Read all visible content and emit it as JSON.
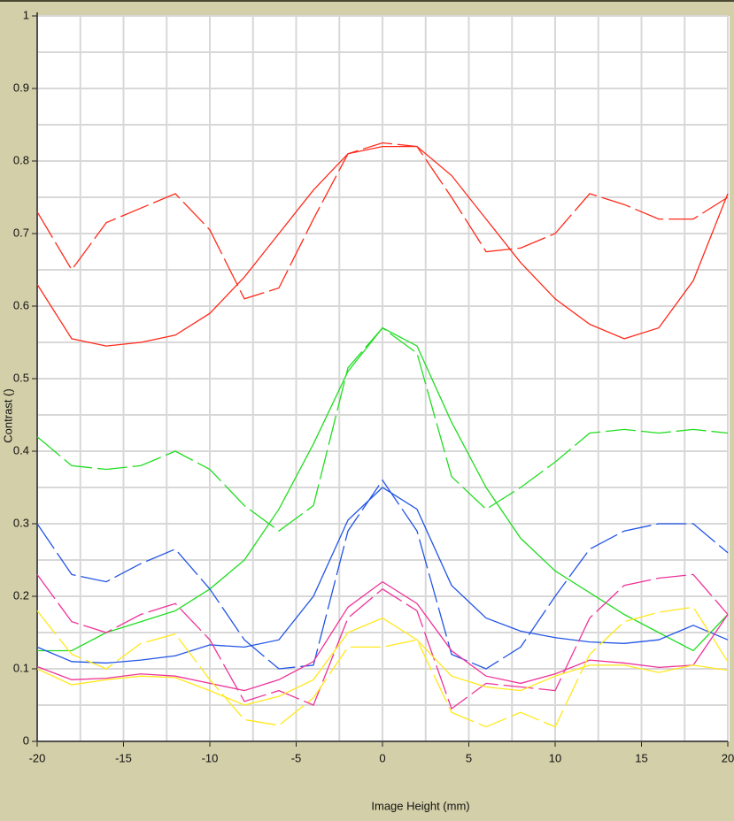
{
  "chart_data": {
    "type": "line",
    "xlabel": "Image Height (mm)",
    "ylabel": "Contrast ()",
    "x": [
      -20,
      -18,
      -16,
      -14,
      -12,
      -10,
      -8,
      -6,
      -4,
      -2,
      0,
      2,
      4,
      6,
      8,
      10,
      12,
      14,
      16,
      18,
      20
    ],
    "series": [
      {
        "color": "#ff2a1a",
        "dash": false,
        "values": [
          0.63,
          0.555,
          0.545,
          0.55,
          0.56,
          0.59,
          0.64,
          0.7,
          0.76,
          0.81,
          0.82,
          0.82,
          0.78,
          0.72,
          0.66,
          0.61,
          0.575,
          0.555,
          0.57,
          0.635,
          0.755
        ]
      },
      {
        "color": "#ff2a1a",
        "dash": true,
        "values": [
          0.73,
          0.65,
          0.715,
          0.735,
          0.755,
          0.705,
          0.61,
          0.625,
          0.72,
          0.81,
          0.825,
          0.82,
          0.75,
          0.675,
          0.68,
          0.7,
          0.755,
          0.74,
          0.72,
          0.72,
          0.75
        ]
      },
      {
        "color": "#22dd22",
        "dash": false,
        "values": [
          0.125,
          0.125,
          0.15,
          0.165,
          0.18,
          0.21,
          0.25,
          0.32,
          0.41,
          0.51,
          0.57,
          0.545,
          0.44,
          0.35,
          0.28,
          0.235,
          0.205,
          0.175,
          0.15,
          0.125,
          0.175
        ]
      },
      {
        "color": "#22dd22",
        "dash": true,
        "values": [
          0.42,
          0.38,
          0.375,
          0.38,
          0.4,
          0.375,
          0.325,
          0.29,
          0.325,
          0.515,
          0.57,
          0.535,
          0.365,
          0.32,
          0.35,
          0.385,
          0.425,
          0.43,
          0.425,
          0.43,
          0.425
        ]
      },
      {
        "color": "#2255e6",
        "dash": false,
        "values": [
          0.13,
          0.11,
          0.108,
          0.112,
          0.118,
          0.133,
          0.13,
          0.14,
          0.2,
          0.305,
          0.35,
          0.32,
          0.215,
          0.17,
          0.152,
          0.143,
          0.137,
          0.135,
          0.14,
          0.16,
          0.14
        ]
      },
      {
        "color": "#2255e6",
        "dash": true,
        "values": [
          0.3,
          0.23,
          0.22,
          0.245,
          0.265,
          0.21,
          0.14,
          0.1,
          0.105,
          0.29,
          0.36,
          0.29,
          0.12,
          0.1,
          0.13,
          0.2,
          0.265,
          0.29,
          0.3,
          0.3,
          0.26
        ]
      },
      {
        "color": "#ee3399",
        "dash": false,
        "values": [
          0.103,
          0.085,
          0.087,
          0.093,
          0.09,
          0.08,
          0.07,
          0.085,
          0.11,
          0.185,
          0.22,
          0.19,
          0.125,
          0.09,
          0.08,
          0.093,
          0.112,
          0.108,
          0.102,
          0.105,
          0.175
        ]
      },
      {
        "color": "#ee3399",
        "dash": true,
        "values": [
          0.23,
          0.165,
          0.15,
          0.175,
          0.19,
          0.14,
          0.055,
          0.07,
          0.05,
          0.17,
          0.21,
          0.18,
          0.045,
          0.08,
          0.075,
          0.07,
          0.17,
          0.215,
          0.225,
          0.23,
          0.175
        ]
      },
      {
        "color": "#ffe81a",
        "dash": false,
        "values": [
          0.1,
          0.078,
          0.085,
          0.09,
          0.088,
          0.07,
          0.05,
          0.062,
          0.085,
          0.15,
          0.17,
          0.14,
          0.09,
          0.075,
          0.07,
          0.09,
          0.105,
          0.105,
          0.095,
          0.105,
          0.098
        ]
      },
      {
        "color": "#ffe81a",
        "dash": true,
        "values": [
          0.18,
          0.12,
          0.1,
          0.135,
          0.148,
          0.085,
          0.03,
          0.022,
          0.06,
          0.13,
          0.13,
          0.14,
          0.04,
          0.02,
          0.04,
          0.02,
          0.12,
          0.165,
          0.178,
          0.185,
          0.11
        ]
      }
    ],
    "xlim": [
      -20,
      20
    ],
    "xticks": [
      -20,
      -15,
      -10,
      -5,
      0,
      5,
      10,
      15,
      20
    ],
    "minor_xticks": [
      -17.5,
      -12.5,
      -7.5,
      -2.5,
      2.5,
      7.5,
      12.5,
      17.5
    ],
    "ylim": [
      0,
      1
    ],
    "yticks": [
      0,
      0.1,
      0.2,
      0.3,
      0.4,
      0.5,
      0.6,
      0.7,
      0.8,
      0.9,
      1
    ],
    "minor_yticks": [
      0.05,
      0.15,
      0.25,
      0.35,
      0.45,
      0.55,
      0.65,
      0.75,
      0.85,
      0.95
    ],
    "grid": true
  }
}
